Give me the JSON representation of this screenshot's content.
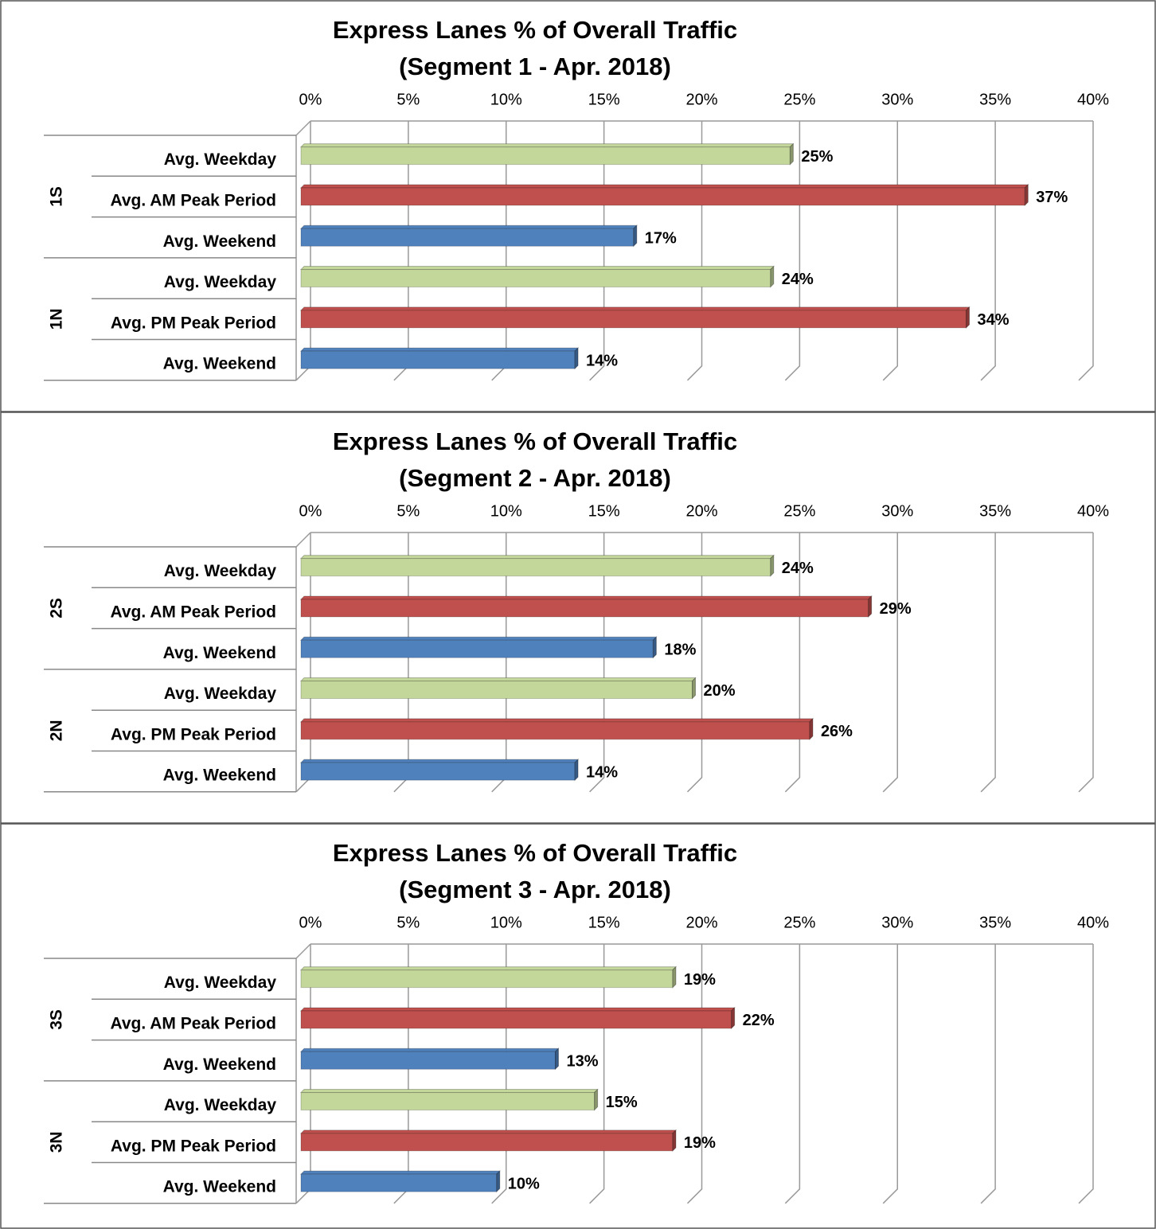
{
  "chart_data": [
    {
      "type": "bar",
      "orientation": "horizontal",
      "title": "Express Lanes % of Overall Traffic",
      "subtitle": "(Segment 1 - Apr. 2018)",
      "xlim": [
        0,
        40
      ],
      "xticks": [
        {
          "value": 0,
          "label": "0%"
        },
        {
          "value": 5,
          "label": "5%"
        },
        {
          "value": 10,
          "label": "10%"
        },
        {
          "value": 15,
          "label": "15%"
        },
        {
          "value": 20,
          "label": "20%"
        },
        {
          "value": 25,
          "label": "25%"
        },
        {
          "value": 30,
          "label": "30%"
        },
        {
          "value": 35,
          "label": "35%"
        },
        {
          "value": 40,
          "label": "40%"
        }
      ],
      "colors": [
        "#c4d79b",
        "#c0504d",
        "#4f81bd"
      ],
      "groups": [
        {
          "label": "1S",
          "categories": [
            "Avg. Weekday",
            "Avg. AM Peak Period",
            "Avg. Weekend"
          ],
          "values": [
            25,
            37,
            17
          ],
          "value_labels": [
            "25%",
            "37%",
            "17%"
          ]
        },
        {
          "label": "1N",
          "categories": [
            "Avg. Weekday",
            "Avg. PM Peak Period",
            "Avg. Weekend"
          ],
          "values": [
            24,
            34,
            14
          ],
          "value_labels": [
            "24%",
            "34%",
            "14%"
          ]
        }
      ]
    },
    {
      "type": "bar",
      "orientation": "horizontal",
      "title": "Express Lanes % of Overall Traffic",
      "subtitle": "(Segment 2 - Apr. 2018)",
      "xlim": [
        0,
        40
      ],
      "xticks": [
        {
          "value": 0,
          "label": "0%"
        },
        {
          "value": 5,
          "label": "5%"
        },
        {
          "value": 10,
          "label": "10%"
        },
        {
          "value": 15,
          "label": "15%"
        },
        {
          "value": 20,
          "label": "20%"
        },
        {
          "value": 25,
          "label": "25%"
        },
        {
          "value": 30,
          "label": "30%"
        },
        {
          "value": 35,
          "label": "35%"
        },
        {
          "value": 40,
          "label": "40%"
        }
      ],
      "colors": [
        "#c4d79b",
        "#c0504d",
        "#4f81bd"
      ],
      "groups": [
        {
          "label": "2S",
          "categories": [
            "Avg. Weekday",
            "Avg. AM Peak Period",
            "Avg. Weekend"
          ],
          "values": [
            24,
            29,
            18
          ],
          "value_labels": [
            "24%",
            "29%",
            "18%"
          ]
        },
        {
          "label": "2N",
          "categories": [
            "Avg. Weekday",
            "Avg. PM Peak Period",
            "Avg. Weekend"
          ],
          "values": [
            20,
            26,
            14
          ],
          "value_labels": [
            "20%",
            "26%",
            "14%"
          ]
        }
      ]
    },
    {
      "type": "bar",
      "orientation": "horizontal",
      "title": "Express Lanes % of Overall Traffic",
      "subtitle": "(Segment 3 - Apr. 2018)",
      "xlim": [
        0,
        40
      ],
      "xticks": [
        {
          "value": 0,
          "label": "0%"
        },
        {
          "value": 5,
          "label": "5%"
        },
        {
          "value": 10,
          "label": "10%"
        },
        {
          "value": 15,
          "label": "15%"
        },
        {
          "value": 20,
          "label": "20%"
        },
        {
          "value": 25,
          "label": "25%"
        },
        {
          "value": 30,
          "label": "30%"
        },
        {
          "value": 35,
          "label": "35%"
        },
        {
          "value": 40,
          "label": "40%"
        }
      ],
      "colors": [
        "#c4d79b",
        "#c0504d",
        "#4f81bd"
      ],
      "groups": [
        {
          "label": "3S",
          "categories": [
            "Avg. Weekday",
            "Avg. AM Peak Period",
            "Avg. Weekend"
          ],
          "values": [
            19,
            22,
            13
          ],
          "value_labels": [
            "19%",
            "22%",
            "13%"
          ]
        },
        {
          "label": "3N",
          "categories": [
            "Avg. Weekday",
            "Avg. PM Peak Period",
            "Avg. Weekend"
          ],
          "values": [
            15,
            19,
            10
          ],
          "value_labels": [
            "15%",
            "19%",
            "10%"
          ]
        }
      ]
    }
  ]
}
